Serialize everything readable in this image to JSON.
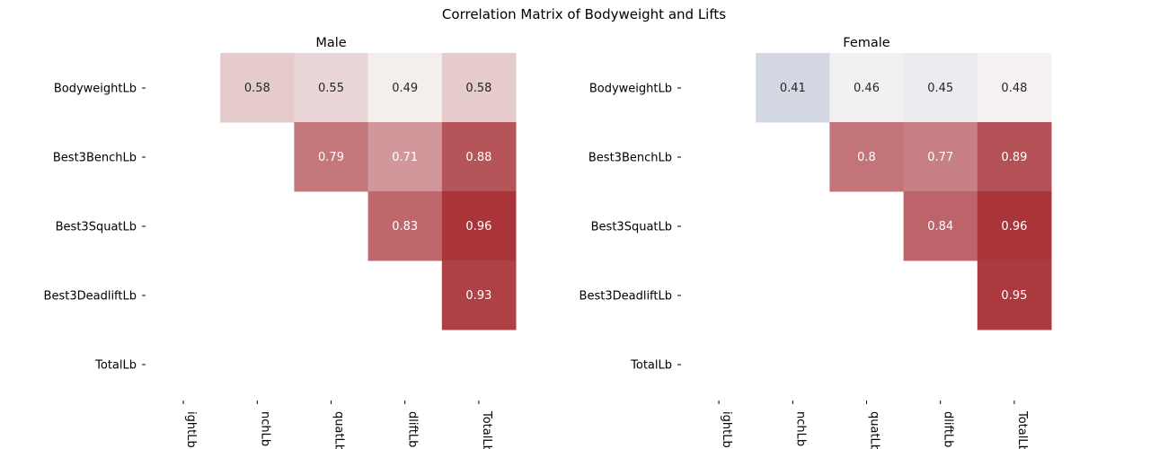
{
  "suptitle": "Correlation Matrix of Bodyweight and Lifts",
  "chart_data": [
    {
      "type": "heatmap",
      "title": "Male",
      "labels": [
        "BodyweightLb",
        "Best3BenchLb",
        "Best3SquatLb",
        "Best3DeadliftLb",
        "TotalLb"
      ],
      "x_tick_labels_visible": [
        "ightLb",
        "nchLb",
        "quatLb",
        "dliftLb",
        "TotalLb"
      ],
      "mask": "lower triangle and diagonal hidden",
      "values": [
        [
          null,
          0.58,
          0.55,
          0.49,
          0.58
        ],
        [
          null,
          null,
          0.79,
          0.71,
          0.88
        ],
        [
          null,
          null,
          null,
          0.83,
          0.96
        ],
        [
          null,
          null,
          null,
          null,
          0.93
        ],
        [
          null,
          null,
          null,
          null,
          null
        ]
      ],
      "colormap": "diverging blue-white-red (vlag)",
      "colors": {
        "low": "#d3d8e3",
        "mid": "#f7f6f5",
        "high": "#a9353b"
      },
      "annotations": true,
      "colorbar": false
    },
    {
      "type": "heatmap",
      "title": "Female",
      "labels": [
        "BodyweightLb",
        "Best3BenchLb",
        "Best3SquatLb",
        "Best3DeadliftLb",
        "TotalLb"
      ],
      "x_tick_labels_visible": [
        "ightLb",
        "nchLb",
        "quatLb",
        "dliftLb",
        "TotalLb"
      ],
      "mask": "lower triangle and diagonal hidden",
      "values": [
        [
          null,
          0.41,
          0.46,
          0.45,
          0.48
        ],
        [
          null,
          null,
          0.8,
          0.77,
          0.89
        ],
        [
          null,
          null,
          null,
          0.84,
          0.96
        ],
        [
          null,
          null,
          null,
          null,
          0.95
        ],
        [
          null,
          null,
          null,
          null,
          null
        ]
      ],
      "colormap": "diverging blue-white-red (vlag)",
      "colors": {
        "low": "#d3d8e3",
        "mid": "#f7f6f5",
        "high": "#a9353b"
      },
      "annotations": true,
      "colorbar": false
    }
  ]
}
